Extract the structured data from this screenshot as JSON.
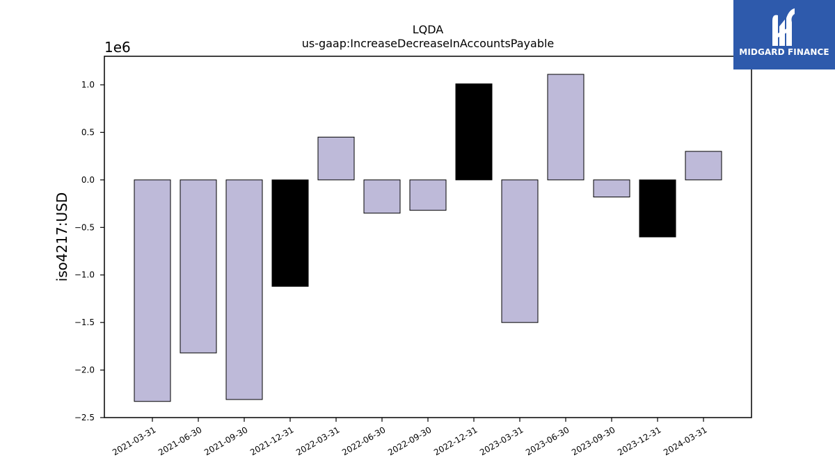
{
  "logo": {
    "text": "MIDGARD FINANCE",
    "icon": "midgard-logo-icon",
    "background": "#2e5aac"
  },
  "chart_data": {
    "type": "bar",
    "title": "LQDA",
    "subtitle": "us-gaap:IncreaseDecreaseInAccountsPayable",
    "ylabel": "iso4217:USD",
    "xlabel": "",
    "y_offset_label": "1e6",
    "y_scale": 1000000,
    "ylim": [
      -2.5,
      1.3
    ],
    "yticks": [
      -2.5,
      -2.0,
      -1.5,
      -1.0,
      -0.5,
      0.0,
      0.5,
      1.0
    ],
    "ytick_labels": [
      "−2.5",
      "−2.0",
      "−1.5",
      "−1.0",
      "−0.5",
      "0.0",
      "0.5",
      "1.0"
    ],
    "grid": false,
    "categories": [
      "2021-03-31",
      "2021-06-30",
      "2021-09-30",
      "2021-12-31",
      "2022-03-31",
      "2022-06-30",
      "2022-09-30",
      "2022-12-31",
      "2023-03-31",
      "2023-06-30",
      "2023-09-30",
      "2023-12-31",
      "2024-03-31"
    ],
    "values": [
      -2330000,
      -1820000,
      -2310000,
      -1120000,
      450000,
      -350000,
      -320000,
      1010000,
      -1500000,
      1110000,
      -180000,
      -600000,
      300000
    ],
    "bar_colors": [
      "#bebad9",
      "#bebad9",
      "#bebad9",
      "#000000",
      "#bebad9",
      "#bebad9",
      "#bebad9",
      "#000000",
      "#bebad9",
      "#bebad9",
      "#bebad9",
      "#000000",
      "#bebad9"
    ]
  }
}
